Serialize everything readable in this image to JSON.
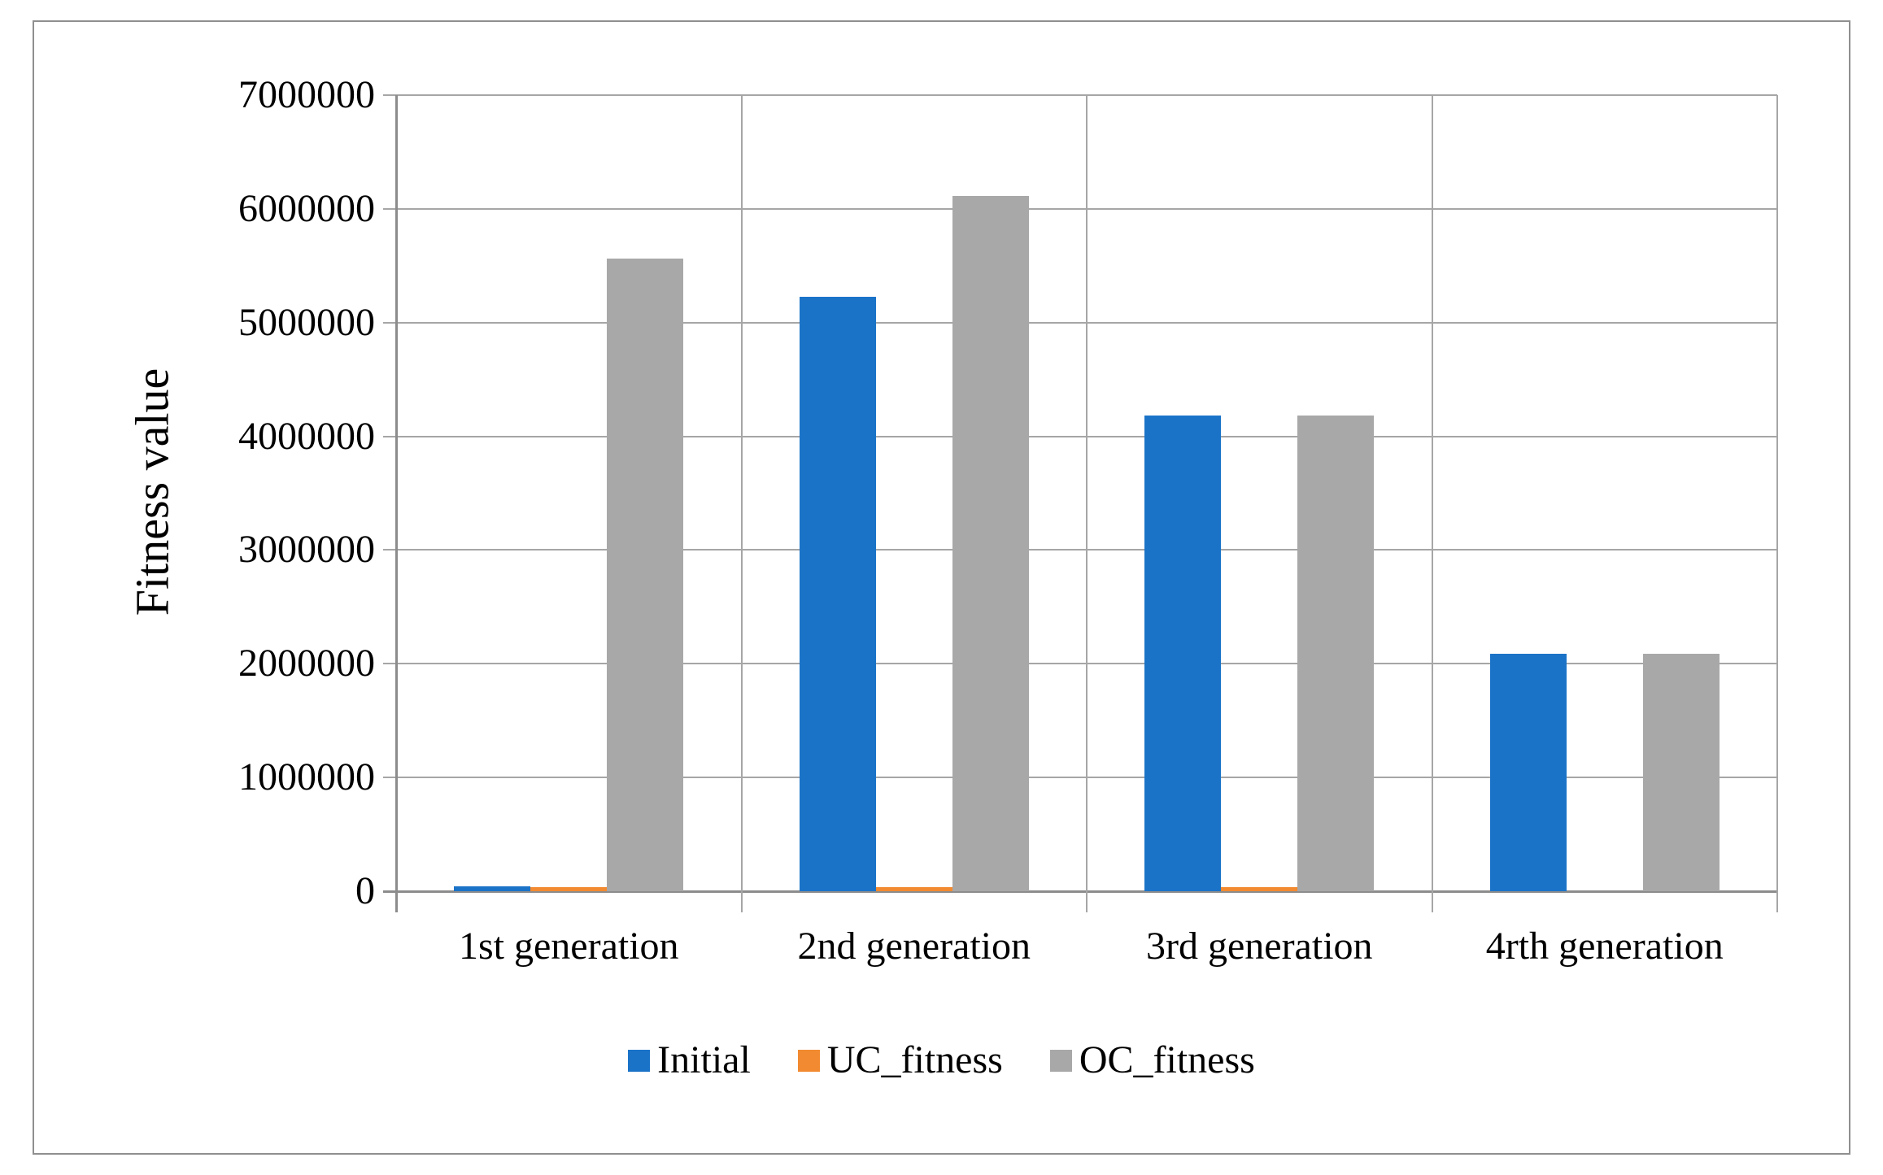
{
  "chart_data": {
    "type": "bar",
    "title": "",
    "xlabel": "",
    "ylabel": "Fitness value",
    "categories": [
      "1st generation",
      "2nd generation",
      "3rd generation",
      "4rth generation"
    ],
    "series": [
      {
        "name": "Initial",
        "color": "#1b73c8",
        "values": [
          40000,
          5230000,
          4180000,
          2090000
        ]
      },
      {
        "name": "UC_fitness",
        "color": "#f28a31",
        "values": [
          35000,
          35000,
          35000,
          0
        ]
      },
      {
        "name": "OC_fitness",
        "color": "#a8a8a8",
        "values": [
          5560000,
          6110000,
          4180000,
          2090000
        ]
      }
    ],
    "ylim": [
      0,
      7000000
    ],
    "ytick_step": 1000000,
    "y_tick_labels": [
      "7000000",
      "6000000",
      "5000000",
      "4000000",
      "3000000",
      "2000000",
      "1000000",
      "0"
    ],
    "grid": true,
    "legend_position": "bottom",
    "style": {
      "gridline_color": "#a6a6a6",
      "axis_color": "#8c8c8c",
      "frame_border_color": "#8f8f8f",
      "text_color": "#000000"
    }
  }
}
